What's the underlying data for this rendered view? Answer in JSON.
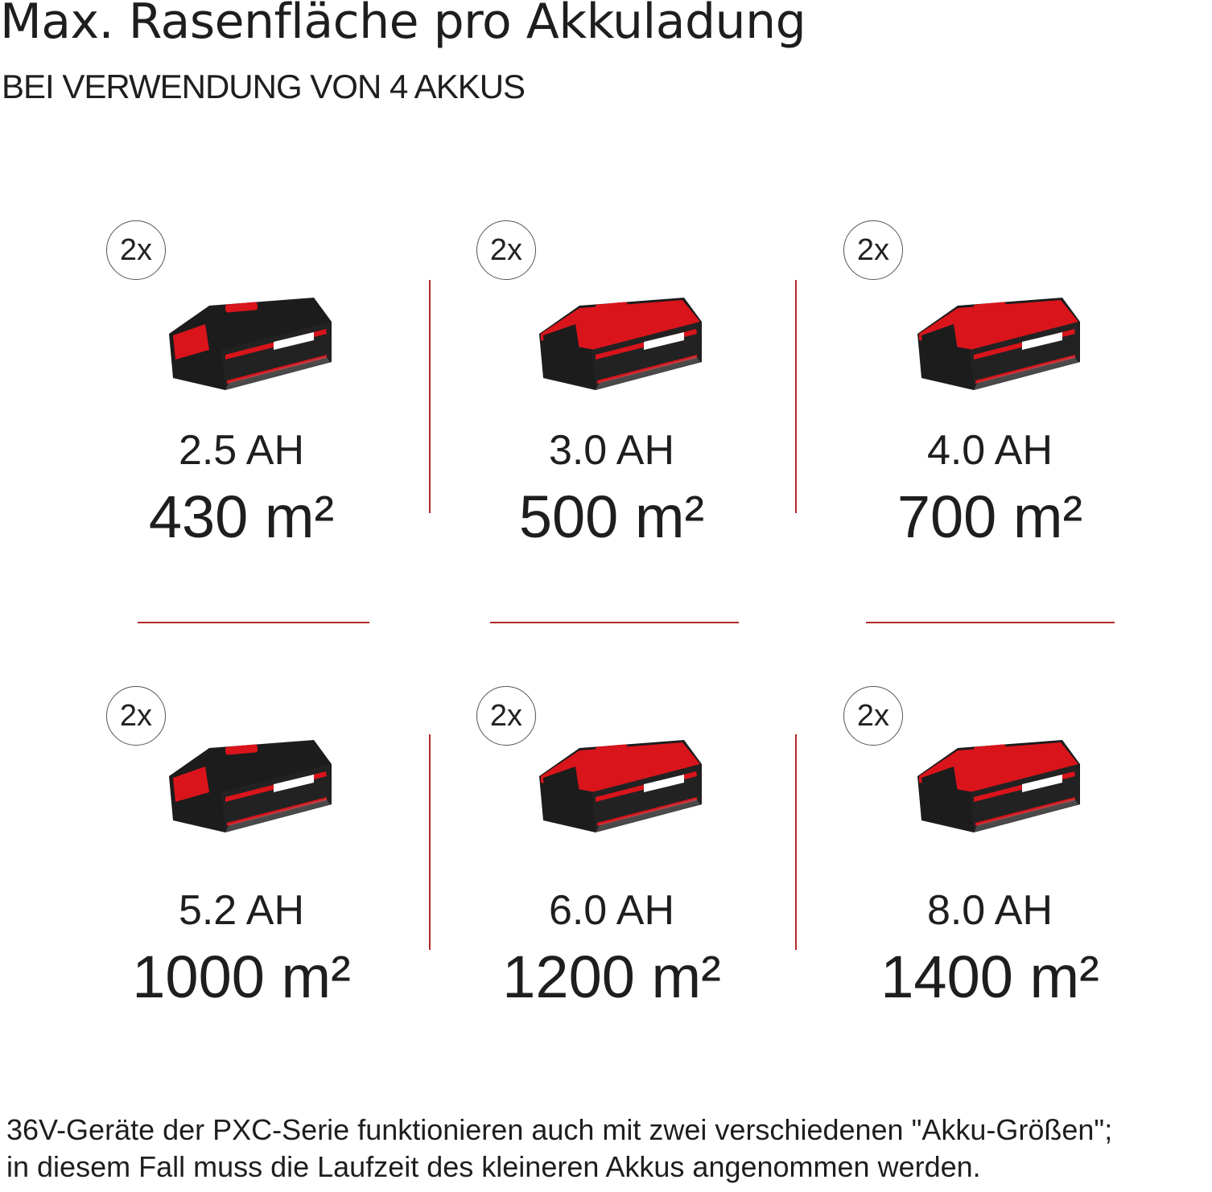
{
  "title": "Max. Rasenfläche pro Akkuladung",
  "subtitle": "BEI VERWENDUNG VON 4 AKKUS",
  "colors": {
    "accent": "#b22a2a",
    "battery_red": "#d9141b",
    "battery_black": "#1c1c1c"
  },
  "batteries": [
    {
      "count": "2x",
      "capacity": "2.5 AH",
      "area": "430 m²",
      "style": "black"
    },
    {
      "count": "2x",
      "capacity": "3.0 AH",
      "area": "500 m²",
      "style": "red"
    },
    {
      "count": "2x",
      "capacity": "4.0 AH",
      "area": "700 m²",
      "style": "red"
    },
    {
      "count": "2x",
      "capacity": "5.2 AH",
      "area": "1000 m²",
      "style": "black"
    },
    {
      "count": "2x",
      "capacity": "6.0 AH",
      "area": "1200 m²",
      "style": "red"
    },
    {
      "count": "2x",
      "capacity": "8.0 AH",
      "area": "1400 m²",
      "style": "red"
    }
  ],
  "footer": {
    "line1": "36V-Geräte der PXC-Serie funktionieren auch mit zwei verschiedenen \"Akku-Größen\";",
    "line2": "in diesem Fall muss die Laufzeit des kleineren Akkus angenommen werden."
  }
}
